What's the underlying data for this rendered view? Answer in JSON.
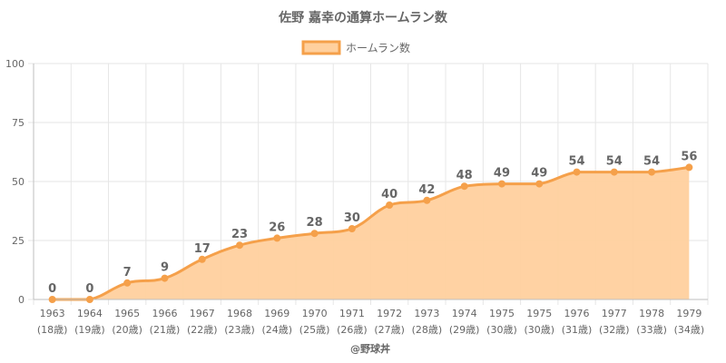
{
  "chart_data": {
    "type": "area",
    "title": "佐野 嘉幸の通算ホームラン数",
    "legend": {
      "label": "ホームラン数",
      "position": "top"
    },
    "categories": [
      [
        "1963",
        "(18歳)"
      ],
      [
        "1964",
        "(19歳)"
      ],
      [
        "1965",
        "(20歳)"
      ],
      [
        "1966",
        "(21歳)"
      ],
      [
        "1967",
        "(22歳)"
      ],
      [
        "1968",
        "(23歳)"
      ],
      [
        "1969",
        "(24歳)"
      ],
      [
        "1970",
        "(25歳)"
      ],
      [
        "1971",
        "(26歳)"
      ],
      [
        "1972",
        "(27歳)"
      ],
      [
        "1973",
        "(28歳)"
      ],
      [
        "1974",
        "(29歳)"
      ],
      [
        "1975",
        "(30歳)"
      ],
      [
        "1975",
        "(30歳)"
      ],
      [
        "1976",
        "(31歳)"
      ],
      [
        "1977",
        "(32歳)"
      ],
      [
        "1978",
        "(33歳)"
      ],
      [
        "1979",
        "(34歳)"
      ]
    ],
    "series": [
      {
        "name": "ホームラン数",
        "values": [
          0,
          0,
          7,
          9,
          17,
          23,
          26,
          28,
          30,
          40,
          42,
          48,
          49,
          49,
          54,
          54,
          54,
          56
        ]
      }
    ],
    "ylim": [
      0,
      100
    ],
    "yticks": [
      0,
      25,
      50,
      75,
      100
    ],
    "grid": true,
    "colors": {
      "line": "#f5a04a",
      "fill": "#ffd09e",
      "point": "#f5a04a"
    },
    "source": "@野球丼"
  }
}
